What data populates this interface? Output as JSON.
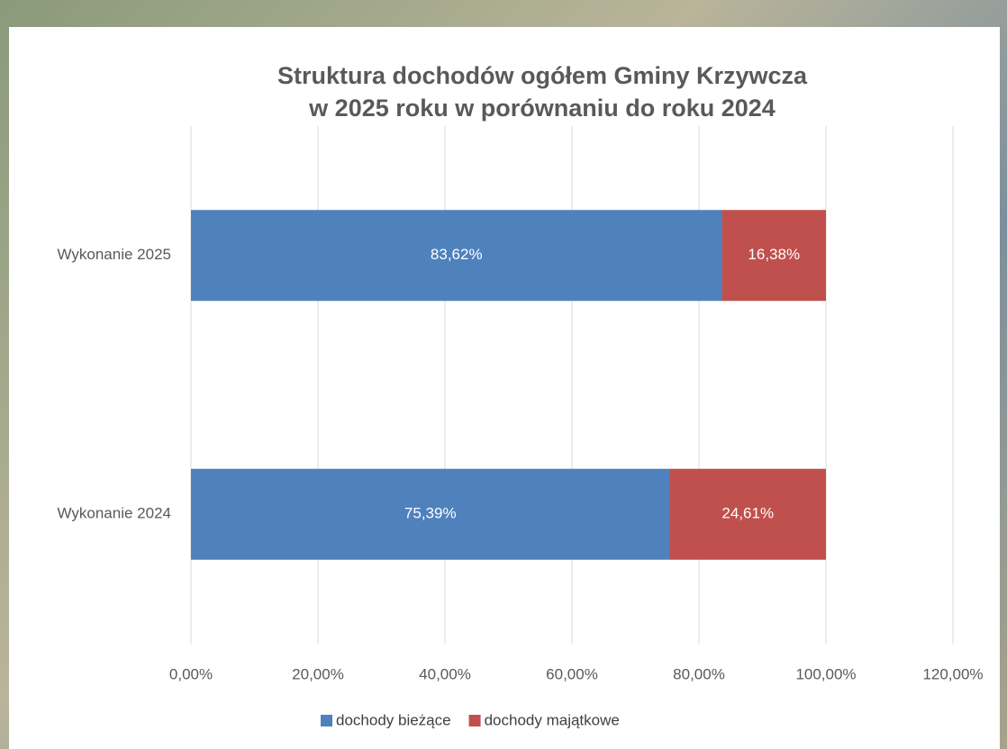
{
  "chart_data": {
    "type": "stacked-barh",
    "title": [
      "Struktura dochodów ogółem Gminy Krzywcza",
      "w 2025 roku w porównaniu do roku 2024"
    ],
    "categories": [
      "Wykonanie 2025",
      "Wykonanie 2024"
    ],
    "series": [
      {
        "name": "dochody bieżące",
        "color": "#4f81bd",
        "values": [
          83.62,
          75.39
        ],
        "value_labels": [
          "83,62%",
          "75,39%"
        ]
      },
      {
        "name": "dochody majątkowe",
        "color": "#c0504d",
        "values": [
          16.38,
          24.61
        ],
        "value_labels": [
          "16,38%",
          "24,61%"
        ]
      }
    ],
    "xlim": [
      0,
      120
    ],
    "xticks": [
      {
        "value": 0,
        "label": "0,00%"
      },
      {
        "value": 20,
        "label": "20,00%"
      },
      {
        "value": 40,
        "label": "40,00%"
      },
      {
        "value": 60,
        "label": "60,00%"
      },
      {
        "value": 80,
        "label": "80,00%"
      },
      {
        "value": 100,
        "label": "100,00%"
      },
      {
        "value": 120,
        "label": "120,00%"
      }
    ],
    "grid": true,
    "legend": "bottom"
  }
}
